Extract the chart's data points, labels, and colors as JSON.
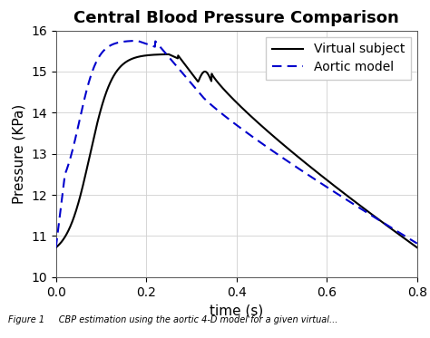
{
  "title": "Central Blood Pressure Comparison",
  "xlabel": "time (s)",
  "ylabel": "Pressure (KPa)",
  "xlim": [
    0,
    0.8
  ],
  "ylim": [
    10,
    16
  ],
  "xticks": [
    0,
    0.2,
    0.4,
    0.6,
    0.8
  ],
  "yticks": [
    10,
    11,
    12,
    13,
    14,
    15,
    16
  ],
  "virtual_color": "#000000",
  "aortic_color": "#0000cc",
  "legend_labels": [
    "Virtual subject",
    "Aortic model"
  ],
  "title_fontsize": 13,
  "axis_label_fontsize": 11,
  "tick_fontsize": 10,
  "legend_fontsize": 10,
  "grid_color": "#d0d0d0",
  "background_color": "#ffffff",
  "caption": "Figure 1      CBP estimation using the aortic 4-D model for a given virtual..."
}
